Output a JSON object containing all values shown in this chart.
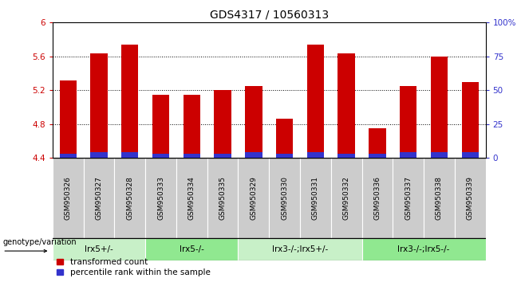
{
  "title": "GDS4317 / 10560313",
  "samples": [
    "GSM950326",
    "GSM950327",
    "GSM950328",
    "GSM950333",
    "GSM950334",
    "GSM950335",
    "GSM950329",
    "GSM950330",
    "GSM950331",
    "GSM950332",
    "GSM950336",
    "GSM950337",
    "GSM950338",
    "GSM950339"
  ],
  "transformed_counts": [
    5.32,
    5.64,
    5.74,
    5.15,
    5.15,
    5.2,
    5.25,
    4.86,
    5.74,
    5.64,
    4.75,
    5.25,
    5.6,
    5.3
  ],
  "percentile_ranks": [
    3,
    4,
    4,
    3,
    3,
    3,
    4,
    3,
    4,
    3,
    3,
    4,
    4,
    4
  ],
  "bar_bottom": 4.4,
  "ylim_left": [
    4.4,
    6.0
  ],
  "ylim_right": [
    0,
    100
  ],
  "yticks_left": [
    4.4,
    4.8,
    5.2,
    5.6,
    6.0
  ],
  "ytick_labels_left": [
    "4.4",
    "4.8",
    "5.2",
    "5.6",
    "6"
  ],
  "yticks_right": [
    0,
    25,
    50,
    75,
    100
  ],
  "ytick_labels_right": [
    "0",
    "25",
    "50",
    "75",
    "100%"
  ],
  "groups": [
    {
      "label": "lrx5+/-",
      "start": 0,
      "end": 3,
      "color": "#c8f0c8"
    },
    {
      "label": "lrx5-/-",
      "start": 3,
      "end": 6,
      "color": "#90e890"
    },
    {
      "label": "lrx3-/-;lrx5+/-",
      "start": 6,
      "end": 10,
      "color": "#c8f0c8"
    },
    {
      "label": "lrx3-/-;lrx5-/-",
      "start": 10,
      "end": 14,
      "color": "#90e890"
    }
  ],
  "bar_color_red": "#cc0000",
  "bar_color_blue": "#3333cc",
  "bar_width": 0.55,
  "left_tick_color": "#cc0000",
  "right_tick_color": "#3333cc",
  "legend_red_label": "transformed count",
  "legend_blue_label": "percentile rank within the sample",
  "genotype_label": "genotype/variation",
  "title_fontsize": 10,
  "tick_fontsize": 7.5,
  "legend_fontsize": 7.5,
  "sample_fontsize": 6.5,
  "geno_fontsize": 7.5
}
